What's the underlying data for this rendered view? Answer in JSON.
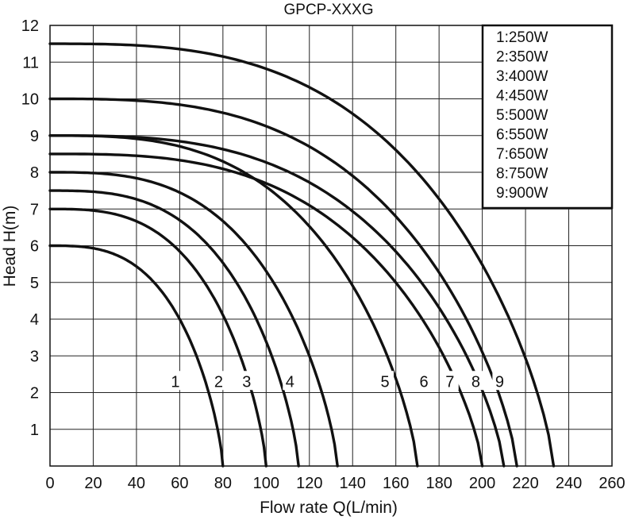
{
  "chart_data": {
    "type": "line",
    "title": "GPCP-XXXG",
    "xlabel": "Flow rate Q(L/min)",
    "ylabel": "Head H(m)",
    "xlim": [
      0,
      260
    ],
    "ylim": [
      0,
      12
    ],
    "xticks": [
      "0",
      "20",
      "40",
      "60",
      "80",
      "100",
      "120",
      "140",
      "160",
      "180",
      "200",
      "220",
      "240",
      "260"
    ],
    "yticks": [
      "1",
      "2",
      "3",
      "4",
      "5",
      "6",
      "7",
      "8",
      "9",
      "10",
      "11",
      "12"
    ],
    "grid": true,
    "legend_position": "top-right",
    "legend": [
      "1:250W",
      "2:350W",
      "3:400W",
      "4:450W",
      "5:500W",
      "6:550W",
      "7:650W",
      "8:750W",
      "9:900W"
    ],
    "series": [
      {
        "name": "1",
        "shutoff_head": 6.0,
        "max_flow": 80,
        "label_pos": [
          58,
          2.2
        ]
      },
      {
        "name": "2",
        "shutoff_head": 7.0,
        "max_flow": 100,
        "label_pos": [
          78,
          2.2
        ]
      },
      {
        "name": "3",
        "shutoff_head": 7.5,
        "max_flow": 115,
        "label_pos": [
          91,
          2.2
        ]
      },
      {
        "name": "4",
        "shutoff_head": 8.0,
        "max_flow": 133,
        "label_pos": [
          111,
          2.2
        ]
      },
      {
        "name": "5",
        "shutoff_head": 9.0,
        "max_flow": 170,
        "label_pos": [
          155,
          2.2
        ]
      },
      {
        "name": "6",
        "shutoff_head": 8.5,
        "max_flow": 200,
        "label_pos": [
          173,
          2.2
        ]
      },
      {
        "name": "7",
        "shutoff_head": 9.0,
        "max_flow": 210,
        "label_pos": [
          185,
          2.2
        ]
      },
      {
        "name": "8",
        "shutoff_head": 10.0,
        "max_flow": 216,
        "label_pos": [
          197,
          2.2
        ]
      },
      {
        "name": "9",
        "shutoff_head": 11.5,
        "max_flow": 233,
        "label_pos": [
          208,
          2.2
        ]
      }
    ]
  }
}
